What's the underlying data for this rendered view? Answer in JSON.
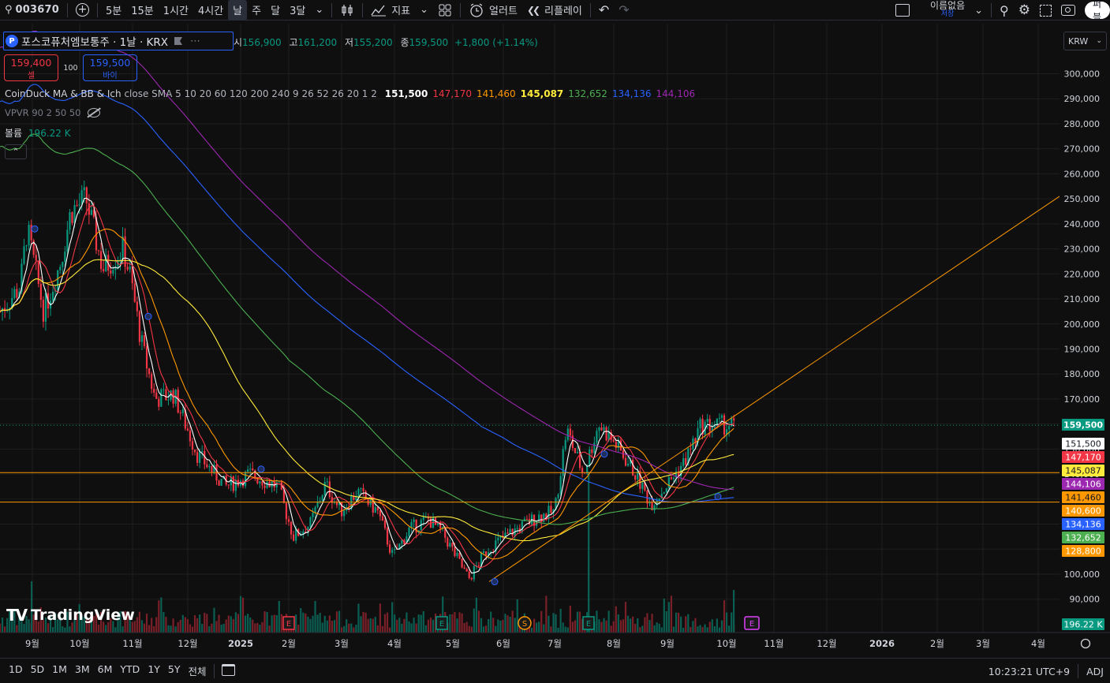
{
  "toolbar": {
    "symbol": "003670",
    "intervals": [
      "5분",
      "15분",
      "1시간",
      "4시간",
      "날",
      "주",
      "달",
      "3달"
    ],
    "active_interval": "날",
    "indicators_label": "지표",
    "alert_label": "얼러트",
    "replay_label": "리플레이",
    "layout_name": "이름없음",
    "save_label": "저장",
    "publish_label": "퍼블"
  },
  "legend": {
    "badge": "P",
    "title": "포스코퓨처엠보통주 · 1날 · KRX",
    "open_label": "시",
    "open": "156,900",
    "high_label": "고",
    "high": "161,200",
    "low_label": "저",
    "low": "155,200",
    "close_label": "종",
    "close": "159,500",
    "change": "+1,800 (+1.14%)"
  },
  "trade": {
    "sell_price": "159,400",
    "sell_label": "셀",
    "qty": "100",
    "buy_price": "159,500",
    "buy_label": "바이"
  },
  "indicators": {
    "ma_name": "CoinDuck MA & BB & Ich",
    "ma_args": "close SMA 5 10 20 60 120 200 240 9 26 52 26 20 1 2",
    "ma_values": [
      {
        "v": "151,500",
        "color": "#ffffff"
      },
      {
        "v": "147,170",
        "color": "#f23645"
      },
      {
        "v": "141,460",
        "color": "#ff9800"
      },
      {
        "v": "145,087",
        "color": "#ffeb3b"
      },
      {
        "v": "132,652",
        "color": "#4caf50"
      },
      {
        "v": "134,136",
        "color": "#2962ff"
      },
      {
        "v": "144,106",
        "color": "#9c27b0"
      }
    ],
    "vpvr": "VPVR 90 2 50 50",
    "volume_label": "볼륨",
    "volume_value": "196.22 K"
  },
  "currency": "KRW",
  "price_axis": [
    "300,000",
    "290,000",
    "280,000",
    "270,000",
    "260,000",
    "250,000",
    "240,000",
    "230,000",
    "220,000",
    "210,000",
    "200,000",
    "190,000",
    "180,000",
    "170,000",
    "160,000",
    "150,000",
    "140,000",
    "130,000",
    "120,000",
    "110,000",
    "100,000",
    "90,000"
  ],
  "price_tags": [
    {
      "label": "159,500",
      "value": 159500,
      "bg": "#089981",
      "fg": "#ffffff"
    },
    {
      "label": "151,500",
      "value": 151500,
      "bg": "#ffffff",
      "fg": "#131722"
    },
    {
      "label": "147,170",
      "value": 147170,
      "bg": "#f23645",
      "fg": "#ffffff"
    },
    {
      "label": "145,087",
      "value": 145087,
      "bg": "#ffeb3b",
      "fg": "#131722"
    },
    {
      "label": "144,106",
      "value": 144106,
      "bg": "#9c27b0",
      "fg": "#ffffff"
    },
    {
      "label": "141,460",
      "value": 141460,
      "bg": "#ff9800",
      "fg": "#131722"
    },
    {
      "label": "140,600",
      "value": 140600,
      "bg": "#ff9800",
      "fg": "#ffffff"
    },
    {
      "label": "134,136",
      "value": 134136,
      "bg": "#2962ff",
      "fg": "#ffffff"
    },
    {
      "label": "132,652",
      "value": 132652,
      "bg": "#4caf50",
      "fg": "#ffffff"
    },
    {
      "label": "128,800",
      "value": 128800,
      "bg": "#ff9800",
      "fg": "#ffffff"
    },
    {
      "label": "196.22 K",
      "value": null,
      "bg": "#089981",
      "fg": "#ffffff"
    }
  ],
  "time_axis": [
    "9월",
    "10월",
    "11월",
    "12월",
    "2025",
    "2월",
    "3월",
    "4월",
    "5월",
    "6월",
    "7월",
    "8월",
    "9월",
    "10월",
    "11월",
    "12월",
    "2026",
    "2월",
    "3월",
    "4월"
  ],
  "event_markers": [
    "E",
    "E",
    "S",
    "E",
    "E"
  ],
  "logo_text": "TradingView",
  "bottom": {
    "ranges": [
      "1D",
      "5D",
      "1M",
      "3M",
      "6M",
      "YTD",
      "1Y",
      "5Y",
      "전체"
    ],
    "time": "10:23:21 UTC+9",
    "adj": "ADJ"
  },
  "chart_data": {
    "type": "candlestick",
    "title": "포스코퓨처엠보통주 · 1날 · KRX",
    "y_unit": "KRW",
    "ylim": [
      85000,
      305000
    ],
    "horizontal_lines": [
      140600,
      128800
    ],
    "last_close": 159500,
    "price_path_keypoints": [
      {
        "t": "2024-08-20",
        "price": 205000
      },
      {
        "t": "2024-09-01",
        "price": 215000
      },
      {
        "t": "2024-09-05",
        "price": 238000
      },
      {
        "t": "2024-09-15",
        "price": 205000
      },
      {
        "t": "2024-09-25",
        "price": 225000
      },
      {
        "t": "2024-10-01",
        "price": 245000
      },
      {
        "t": "2024-10-10",
        "price": 250000
      },
      {
        "t": "2024-10-20",
        "price": 222000
      },
      {
        "t": "2024-11-01",
        "price": 230000
      },
      {
        "t": "2024-11-05",
        "price": 220000
      },
      {
        "t": "2024-11-12",
        "price": 192000
      },
      {
        "t": "2024-11-20",
        "price": 170000
      },
      {
        "t": "2024-12-01",
        "price": 172000
      },
      {
        "t": "2024-12-15",
        "price": 148000
      },
      {
        "t": "2025-01-01",
        "price": 135000
      },
      {
        "t": "2025-01-15",
        "price": 140000
      },
      {
        "t": "2025-02-01",
        "price": 135000
      },
      {
        "t": "2025-02-10",
        "price": 115000
      },
      {
        "t": "2025-02-20",
        "price": 120000
      },
      {
        "t": "2025-03-01",
        "price": 136000
      },
      {
        "t": "2025-03-10",
        "price": 125000
      },
      {
        "t": "2025-03-20",
        "price": 133000
      },
      {
        "t": "2025-04-01",
        "price": 125000
      },
      {
        "t": "2025-04-10",
        "price": 107000
      },
      {
        "t": "2025-04-20",
        "price": 118000
      },
      {
        "t": "2025-05-01",
        "price": 122000
      },
      {
        "t": "2025-05-10",
        "price": 116000
      },
      {
        "t": "2025-05-25",
        "price": 98000
      },
      {
        "t": "2025-06-05",
        "price": 110000
      },
      {
        "t": "2025-06-20",
        "price": 117000
      },
      {
        "t": "2025-07-05",
        "price": 123000
      },
      {
        "t": "2025-07-15",
        "price": 125000
      },
      {
        "t": "2025-07-22",
        "price": 158000
      },
      {
        "t": "2025-08-01",
        "price": 140000
      },
      {
        "t": "2025-08-10",
        "price": 160000
      },
      {
        "t": "2025-08-20",
        "price": 152000
      },
      {
        "t": "2025-09-01",
        "price": 140000
      },
      {
        "t": "2025-09-10",
        "price": 128000
      },
      {
        "t": "2025-09-20",
        "price": 136000
      },
      {
        "t": "2025-09-30",
        "price": 145000
      },
      {
        "t": "2025-10-10",
        "price": 159500
      }
    ]
  }
}
